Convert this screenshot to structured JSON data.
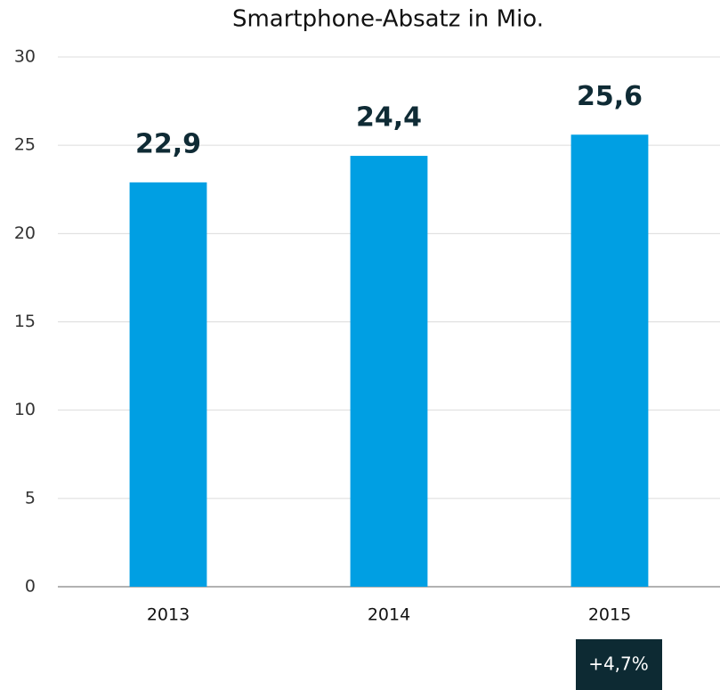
{
  "chart_data": {
    "type": "bar",
    "title": "Smartphone-Absatz in Mio.",
    "categories": [
      "2013",
      "2014",
      "2015"
    ],
    "values": [
      22.9,
      24.4,
      25.6
    ],
    "value_labels": [
      "22,9",
      "24,4",
      "25,6"
    ],
    "color": "#009fe3",
    "ylim": [
      0,
      30
    ],
    "yticks": [
      0,
      5,
      10,
      15,
      20,
      25,
      30
    ],
    "grid": true,
    "annotation": "+4,7%"
  }
}
